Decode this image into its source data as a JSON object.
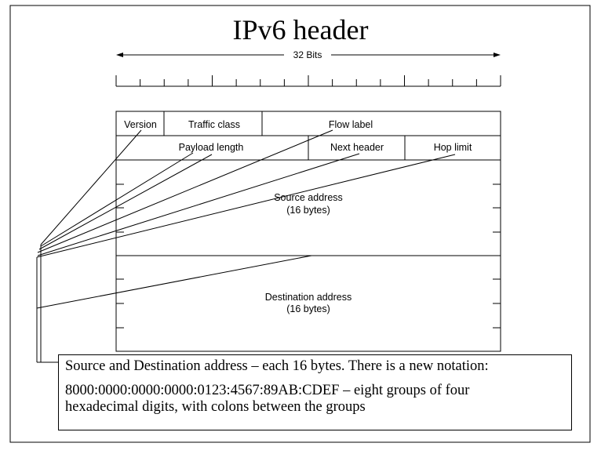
{
  "slide": {
    "title": "IPv6 header",
    "width_label": "32 Bits",
    "fields": {
      "version": "Version",
      "traffic_class": "Traffic class",
      "flow_label": "Flow label",
      "payload_length": "Payload length",
      "next_header": "Next header",
      "hop_limit": "Hop limit",
      "source_address": "Source address",
      "source_size": "(16 bytes)",
      "destination_address": "Destination address",
      "destination_size": "(16 bytes)"
    },
    "note": {
      "line1": "Source and Destination address – each 16 bytes. There is a new notation:",
      "line2": "8000:0000:0000:0000:0123:4567:89AB:CDEF – eight groups of four",
      "line3": "hexadecimal digits, with colons between the groups"
    }
  }
}
